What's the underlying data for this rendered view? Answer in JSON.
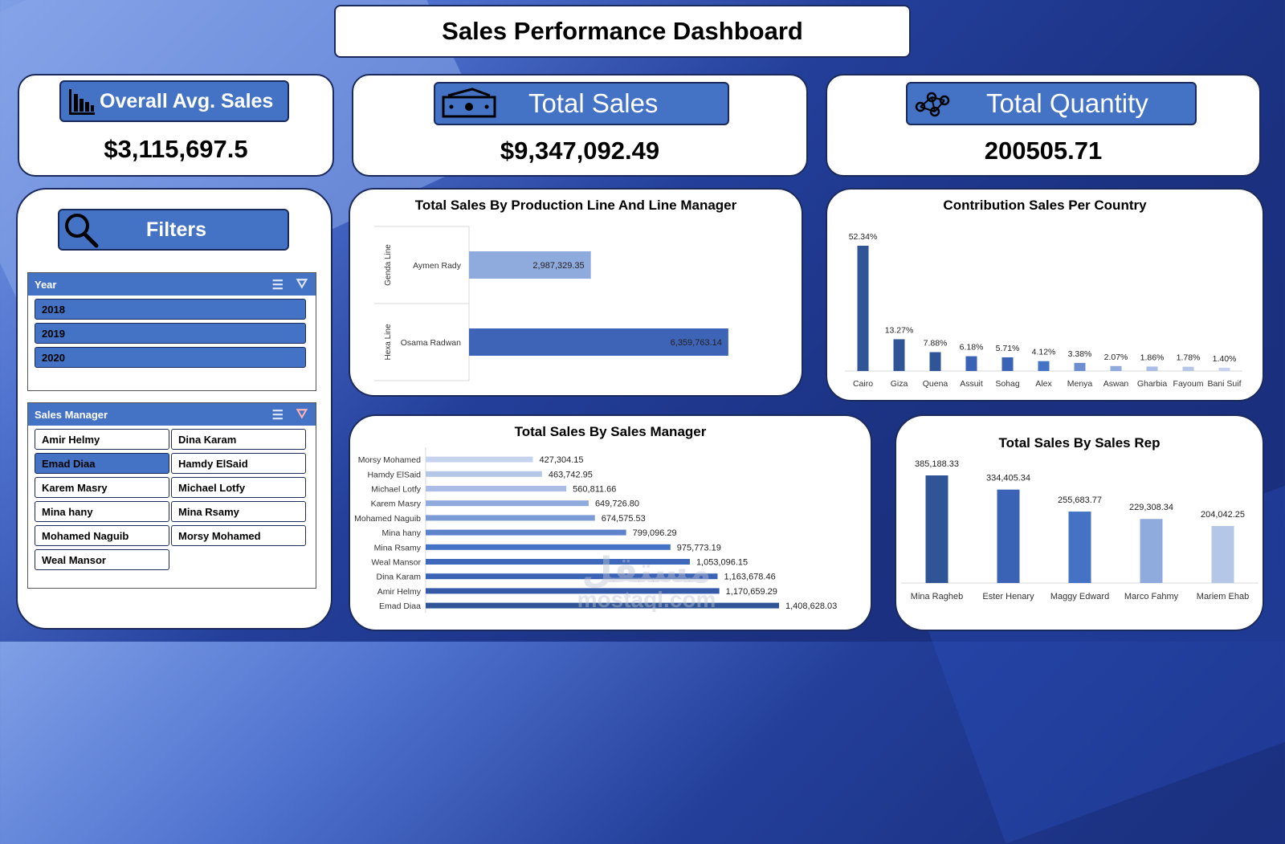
{
  "header": {
    "title": "Sales Performance Dashboard"
  },
  "kpis": {
    "avg": {
      "label": "Overall Avg. Sales",
      "value": "$3,115,697.5",
      "icon": "bar-chart-icon"
    },
    "total_sales": {
      "label": "Total Sales",
      "value": "$9,347,092.49",
      "icon": "money-icon"
    },
    "total_quantity": {
      "label": "Total Quantity",
      "value": "200505.71",
      "icon": "network-icon"
    }
  },
  "filters": {
    "title": "Filters",
    "icon": "search-icon",
    "year": {
      "header": "Year",
      "items": [
        {
          "label": "2018",
          "selected": true
        },
        {
          "label": "2019",
          "selected": true
        },
        {
          "label": "2020",
          "selected": true
        }
      ]
    },
    "sales_manager": {
      "header": "Sales Manager",
      "items": [
        {
          "label": "Amir Helmy",
          "selected": false
        },
        {
          "label": "Dina Karam",
          "selected": false
        },
        {
          "label": "Emad Diaa",
          "selected": true
        },
        {
          "label": "Hamdy ElSaid",
          "selected": false
        },
        {
          "label": "Karem Masry",
          "selected": false
        },
        {
          "label": "Michael Lotfy",
          "selected": false
        },
        {
          "label": "Mina hany",
          "selected": false
        },
        {
          "label": "Mina Rsamy",
          "selected": false
        },
        {
          "label": "Mohamed Naguib",
          "selected": false
        },
        {
          "label": "Morsy Mohamed",
          "selected": false
        },
        {
          "label": "Weal Mansor",
          "selected": false
        }
      ]
    }
  },
  "charts": {
    "production_line": {
      "title": "Total Sales By Production Line And Line Manager",
      "chart_data": {
        "type": "bar",
        "orientation": "horizontal",
        "groups": [
          "Genda Line",
          "Hexa Line"
        ],
        "categories": [
          "Aymen Rady",
          "Osama Radwan"
        ],
        "values": [
          2987329.35,
          6359763.14
        ],
        "labels": [
          "2,987,329.35",
          "6,359,763.14"
        ],
        "colors": [
          "#8faadc",
          "#3e64b8"
        ]
      }
    },
    "country": {
      "title": "Contribution Sales Per Country",
      "chart_data": {
        "type": "bar",
        "categories": [
          "Cairo",
          "Giza",
          "Quena",
          "Assuit",
          "Sohag",
          "Alex",
          "Menya",
          "Aswan",
          "Gharbia",
          "Fayoum",
          "Bani Suif"
        ],
        "values": [
          52.34,
          13.27,
          7.88,
          6.18,
          5.71,
          4.12,
          3.38,
          2.07,
          1.86,
          1.78,
          1.4
        ],
        "labels": [
          "52.34%",
          "13.27%",
          "7.88%",
          "6.18%",
          "5.71%",
          "4.12%",
          "3.38%",
          "2.07%",
          "1.86%",
          "1.78%",
          "1.40%"
        ],
        "colors": [
          "#2f5597",
          "#2f5597",
          "#2f5597",
          "#3a62b5",
          "#3a62b5",
          "#4472c4",
          "#6d8fd1",
          "#8faadc",
          "#a9bde6",
          "#b4c7e7",
          "#c5d3ee"
        ]
      }
    },
    "sales_manager": {
      "title": "Total Sales By Sales Manager",
      "chart_data": {
        "type": "bar",
        "orientation": "horizontal",
        "categories": [
          "Morsy Mohamed",
          "Hamdy ElSaid",
          "Michael Lotfy",
          "Karem Masry",
          "Mohamed Naguib",
          "Mina hany",
          "Mina Rsamy",
          "Weal Mansor",
          "Dina Karam",
          "Amir Helmy",
          "Emad Diaa"
        ],
        "values": [
          427304.15,
          463742.95,
          560811.66,
          649726.8,
          674575.53,
          799096.29,
          975773.19,
          1053096.15,
          1163678.46,
          1170659.29,
          1408628.03
        ],
        "labels": [
          "427,304.15",
          "463,742.95",
          "560,811.66",
          "649,726.80",
          "674,575.53",
          "799,096.29",
          "975,773.19",
          "1,053,096.15",
          "1,163,678.46",
          "1,170,659.29",
          "1,408,628.03"
        ],
        "colors": [
          "#c5d3ee",
          "#b4c7e7",
          "#a9bde6",
          "#8faadc",
          "#7b9bd6",
          "#5d82cc",
          "#4472c4",
          "#3e68b9",
          "#3a62b5",
          "#345aa8",
          "#2f5597"
        ]
      }
    },
    "sales_rep": {
      "title": "Total Sales By Sales Rep",
      "chart_data": {
        "type": "bar",
        "categories": [
          "Mina Ragheb",
          "Ester Henary",
          "Maggy Edward",
          "Marco Fahmy",
          "Mariem Ehab"
        ],
        "values": [
          385188.33,
          334405.34,
          255683.77,
          229308.34,
          204042.25
        ],
        "labels": [
          "385,188.33",
          "334,405.34",
          "255,683.77",
          "229,308.34",
          "204,042.25"
        ],
        "colors": [
          "#2f5597",
          "#3a62b5",
          "#4472c4",
          "#8faadc",
          "#b4c7e7"
        ]
      }
    }
  },
  "watermark": {
    "arabic": "مستقل",
    "latin": "mostaql.com"
  }
}
